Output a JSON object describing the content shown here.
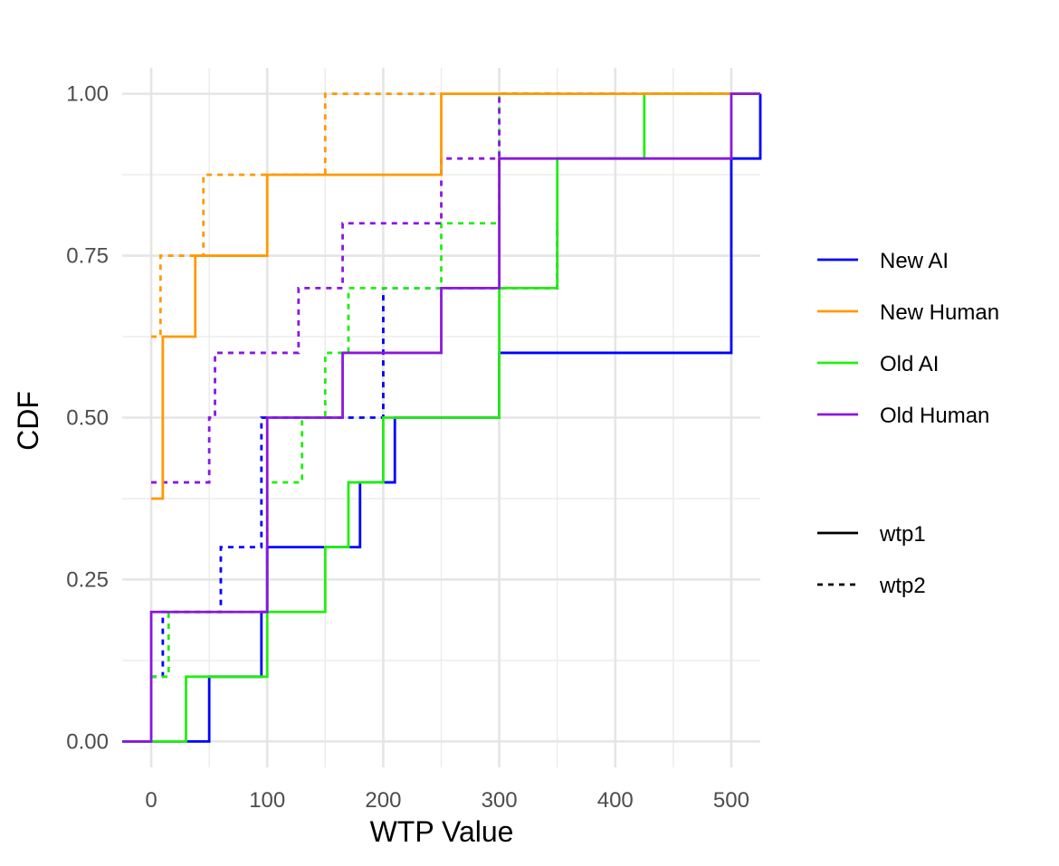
{
  "chart_data": {
    "type": "line",
    "step": true,
    "xlabel": "WTP Value",
    "ylabel": "CDF",
    "xlim": [
      -25,
      525
    ],
    "ylim": [
      -0.04,
      1.04
    ],
    "x_ticks": [
      0,
      100,
      200,
      300,
      400,
      500
    ],
    "y_ticks": [
      0,
      0.25,
      0.5,
      0.75,
      1
    ],
    "x_tick_labels": [
      "0",
      "100",
      "200",
      "300",
      "400",
      "500"
    ],
    "y_tick_labels": [
      "0.00",
      "0.25",
      "0.50",
      "0.75",
      "1.00"
    ],
    "grid": true,
    "legend_position": "right",
    "color_legend": [
      {
        "key": "new_ai",
        "label": "New AI",
        "color": "#0000ff"
      },
      {
        "key": "new_human",
        "label": "New Human",
        "color": "#ff9900"
      },
      {
        "key": "old_ai",
        "label": "Old AI",
        "color": "#22ee11"
      },
      {
        "key": "old_human",
        "label": "Old Human",
        "color": "#8a17e0"
      }
    ],
    "linetype_legend": [
      {
        "key": "wtp1",
        "label": "wtp1",
        "style": "solid"
      },
      {
        "key": "wtp2",
        "label": "wtp2",
        "style": "dashed"
      }
    ],
    "series": [
      {
        "group": "new_ai",
        "linetype": "wtp2",
        "x": [
          0,
          10,
          60,
          95,
          200,
          350
        ],
        "y": [
          0.1,
          0.2,
          0.3,
          0.5,
          0.7,
          0.8
        ]
      },
      {
        "group": "old_ai",
        "linetype": "wtp2",
        "x": [
          0,
          15,
          100,
          130,
          150,
          170,
          250,
          300,
          350
        ],
        "y": [
          0.1,
          0.2,
          0.4,
          0.5,
          0.6,
          0.7,
          0.8,
          1.0,
          1.0
        ]
      },
      {
        "group": "old_human",
        "linetype": "wtp2",
        "x": [
          0,
          50,
          55,
          127,
          165,
          250,
          300,
          525
        ],
        "y": [
          0.4,
          0.5,
          0.6,
          0.7,
          0.8,
          0.9,
          1.0,
          1.0
        ]
      },
      {
        "group": "new_human",
        "linetype": "wtp2",
        "x": [
          0,
          8,
          45,
          150,
          250
        ],
        "y": [
          0.625,
          0.75,
          0.875,
          1.0,
          1.0
        ]
      },
      {
        "group": "new_ai",
        "linetype": "wtp1",
        "x": [
          -25,
          50,
          95,
          100,
          180,
          210,
          300,
          500,
          525
        ],
        "y": [
          0.0,
          0.1,
          0.2,
          0.3,
          0.4,
          0.5,
          0.6,
          0.9,
          1.0
        ]
      },
      {
        "group": "old_ai",
        "linetype": "wtp1",
        "x": [
          -25,
          30,
          100,
          150,
          170,
          200,
          300,
          350,
          425,
          525
        ],
        "y": [
          0.0,
          0.1,
          0.2,
          0.3,
          0.4,
          0.5,
          0.7,
          0.9,
          1.0,
          1.0
        ]
      },
      {
        "group": "new_human",
        "linetype": "wtp1",
        "x": [
          0,
          10,
          38,
          100,
          250,
          525
        ],
        "y": [
          0.375,
          0.625,
          0.75,
          0.875,
          1.0,
          1.0
        ]
      },
      {
        "group": "old_human",
        "linetype": "wtp1",
        "x": [
          -25,
          0,
          100,
          165,
          250,
          300,
          500,
          525
        ],
        "y": [
          0.0,
          0.2,
          0.5,
          0.6,
          0.7,
          0.9,
          1.0,
          1.0
        ]
      }
    ]
  }
}
